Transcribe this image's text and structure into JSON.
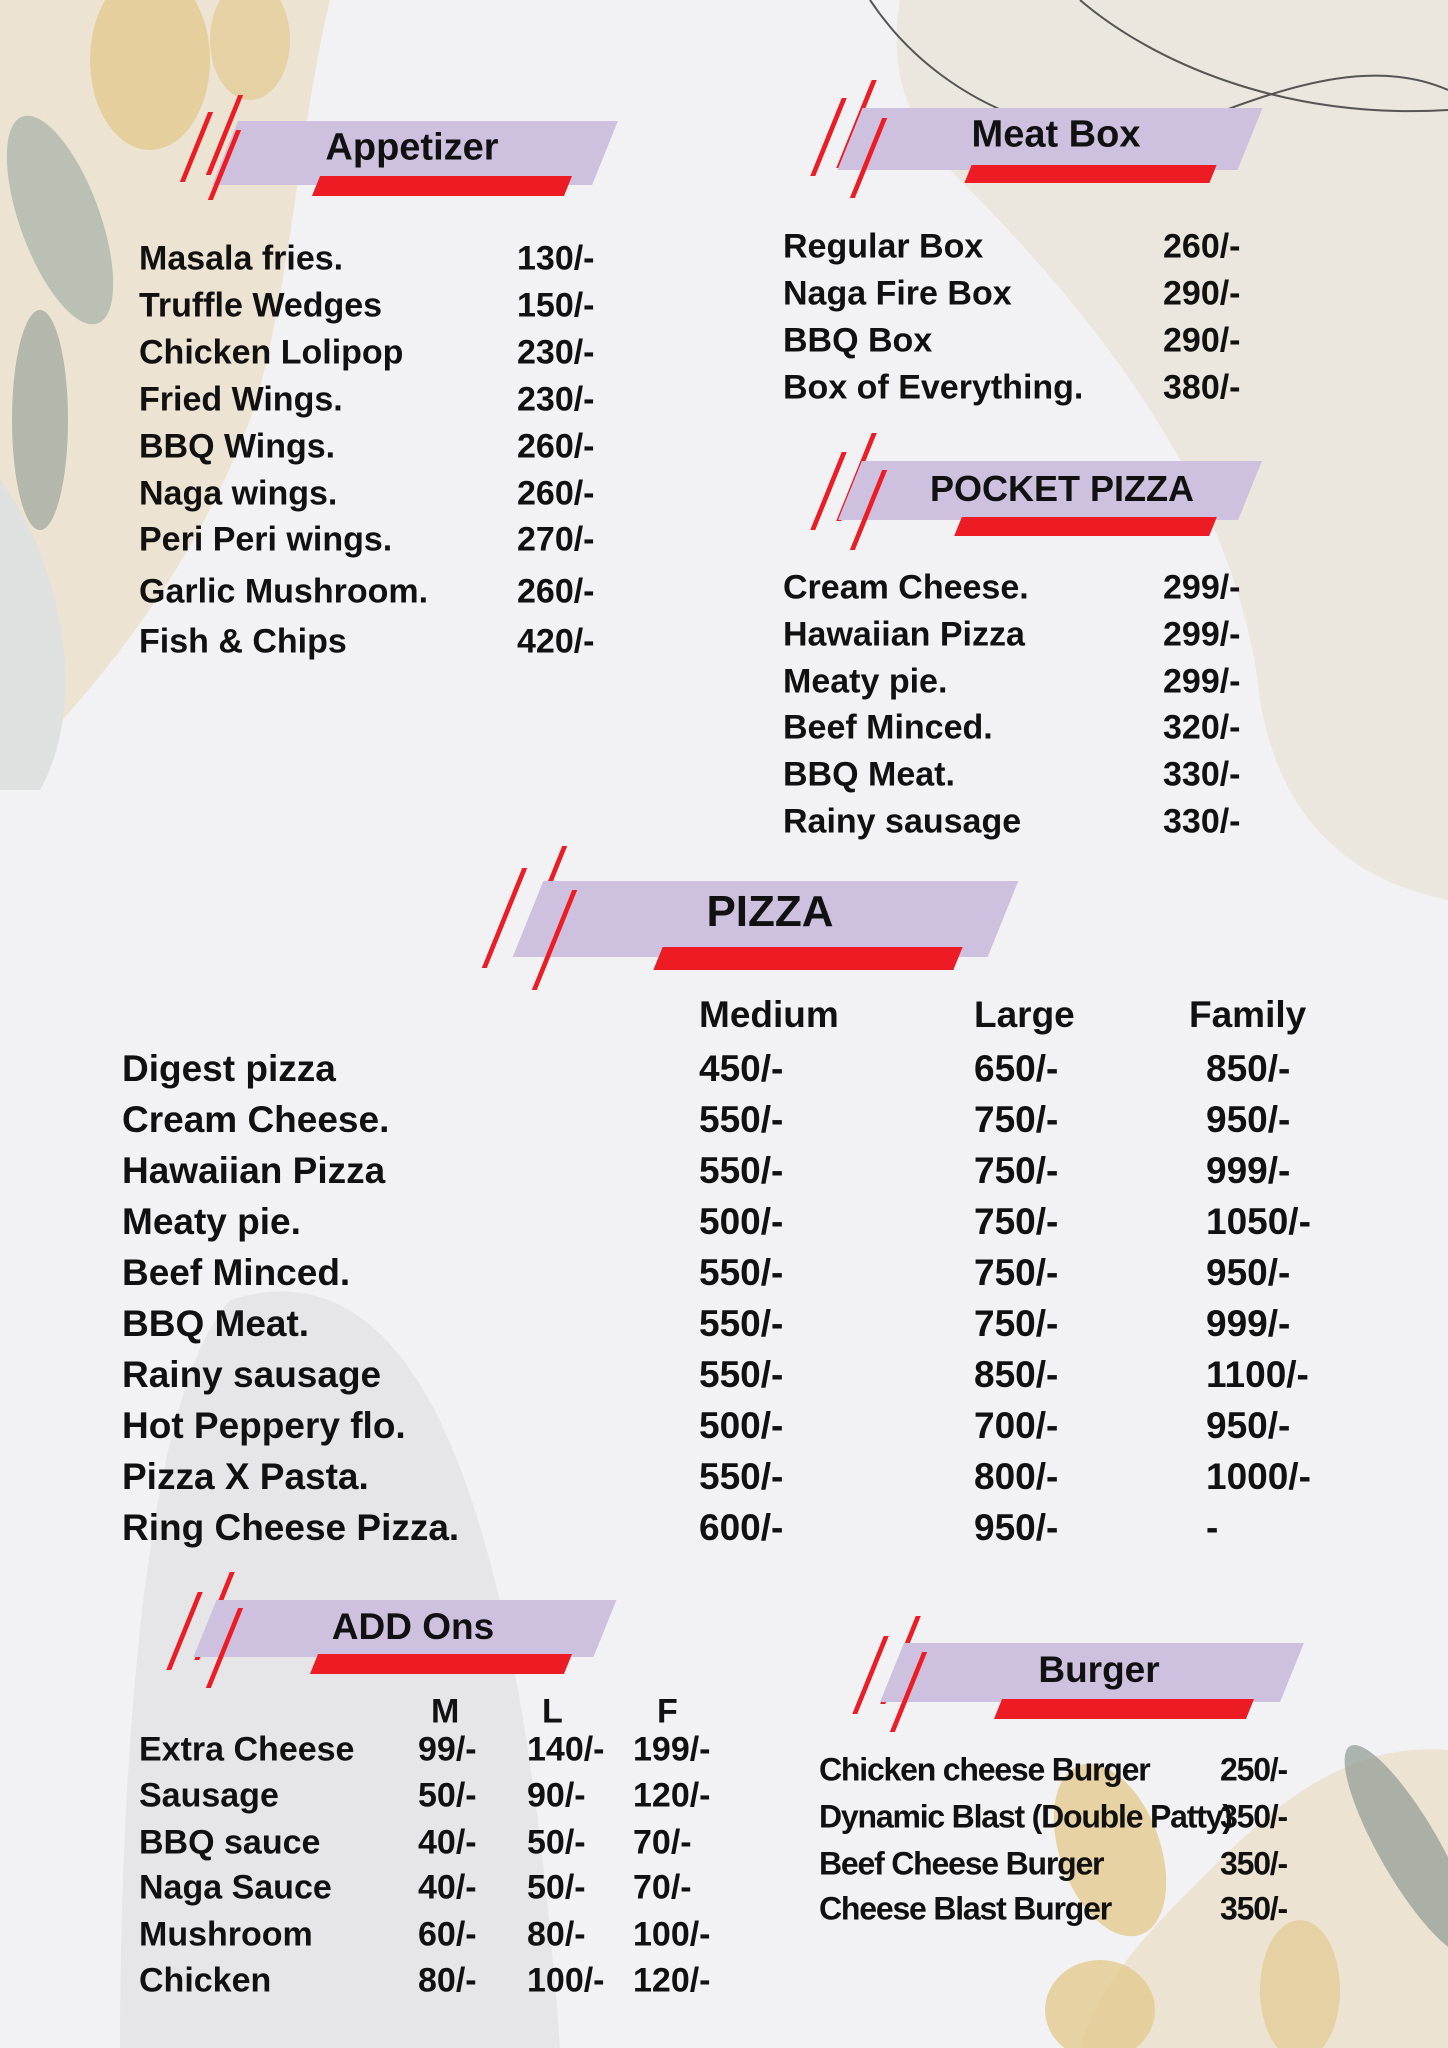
{
  "colors": {
    "banner_purple": "#cdc1df",
    "accent_red": "#ed1c24",
    "background": "#f2f2f4",
    "text": "#111111"
  },
  "appetizer": {
    "title": "Appetizer",
    "items": [
      {
        "name": "Masala fries.",
        "price": "130/-"
      },
      {
        "name": "Truffle Wedges",
        "price": "150/-"
      },
      {
        "name": "Chicken Lolipop",
        "price": "230/-"
      },
      {
        "name": "Fried Wings.",
        "price": "230/-"
      },
      {
        "name": "BBQ Wings.",
        "price": "260/-"
      },
      {
        "name": "Naga wings.",
        "price": "260/-"
      },
      {
        "name": "Peri Peri wings.",
        "price": "270/-"
      },
      {
        "name": "Garlic Mushroom.",
        "price": "260/-"
      },
      {
        "name": "Fish & Chips",
        "price": "420/-"
      }
    ]
  },
  "meat_box": {
    "title": "Meat Box",
    "items": [
      {
        "name": "Regular Box",
        "price": "260/-"
      },
      {
        "name": "Naga Fire Box",
        "price": "290/-"
      },
      {
        "name": "BBQ Box",
        "price": "290/-"
      },
      {
        "name": "Box of Everything.",
        "price": "380/-"
      }
    ]
  },
  "pocket_pizza": {
    "title": "POCKET PIZZA",
    "items": [
      {
        "name": "Cream Cheese.",
        "price": "299/-"
      },
      {
        "name": "Hawaiian Pizza",
        "price": "299/-"
      },
      {
        "name": "Meaty pie.",
        "price": "299/-"
      },
      {
        "name": "Beef Minced.",
        "price": "320/-"
      },
      {
        "name": "BBQ Meat.",
        "price": "330/-"
      },
      {
        "name": "Rainy sausage",
        "price": "330/-"
      }
    ]
  },
  "pizza": {
    "title": "PIZZA",
    "columns": [
      "Medium",
      "Large",
      "Family"
    ],
    "items": [
      {
        "name": "Digest pizza",
        "prices": [
          "450/-",
          "650/-",
          "850/-"
        ]
      },
      {
        "name": "Cream Cheese.",
        "prices": [
          "550/-",
          "750/-",
          "950/-"
        ]
      },
      {
        "name": "Hawaiian Pizza",
        "prices": [
          "550/-",
          "750/-",
          "999/-"
        ]
      },
      {
        "name": "Meaty pie.",
        "prices": [
          "500/-",
          "750/-",
          "1050/-"
        ]
      },
      {
        "name": "Beef Minced.",
        "prices": [
          "550/-",
          "750/-",
          "950/-"
        ]
      },
      {
        "name": "BBQ Meat.",
        "prices": [
          "550/-",
          "750/-",
          "999/-"
        ]
      },
      {
        "name": "Rainy sausage",
        "prices": [
          "550/-",
          "850/-",
          "1100/-"
        ]
      },
      {
        "name": "Hot Peppery flo.",
        "prices": [
          "500/-",
          "700/-",
          "950/-"
        ]
      },
      {
        "name": "Pizza X Pasta.",
        "prices": [
          "550/-",
          "800/-",
          "1000/-"
        ]
      },
      {
        "name": "Ring Cheese Pizza.",
        "prices": [
          "600/-",
          "950/-",
          "-"
        ]
      }
    ]
  },
  "add_ons": {
    "title": "ADD Ons",
    "columns": [
      "M",
      "L",
      "F"
    ],
    "items": [
      {
        "name": "Extra Cheese",
        "prices": [
          "99/-",
          "140/-",
          "199/-"
        ]
      },
      {
        "name": "Sausage",
        "prices": [
          "50/-",
          "90/-",
          "120/-"
        ]
      },
      {
        "name": "BBQ sauce",
        "prices": [
          "40/-",
          "50/-",
          "70/-"
        ]
      },
      {
        "name": "Naga Sauce",
        "prices": [
          "40/-",
          "50/-",
          "70/-"
        ]
      },
      {
        "name": "Mushroom",
        "prices": [
          "60/-",
          "80/-",
          "100/-"
        ]
      },
      {
        "name": "Chicken",
        "prices": [
          "80/-",
          "100/-",
          "120/-"
        ]
      }
    ]
  },
  "burger": {
    "title": "Burger",
    "items": [
      {
        "name": "Chicken cheese Burger",
        "price": "250/-"
      },
      {
        "name": "Dynamic Blast (Double Patty)",
        "price": "350/-"
      },
      {
        "name": "Beef Cheese Burger",
        "price": "350/-"
      },
      {
        "name": "Cheese Blast Burger",
        "price": "350/-"
      }
    ]
  }
}
